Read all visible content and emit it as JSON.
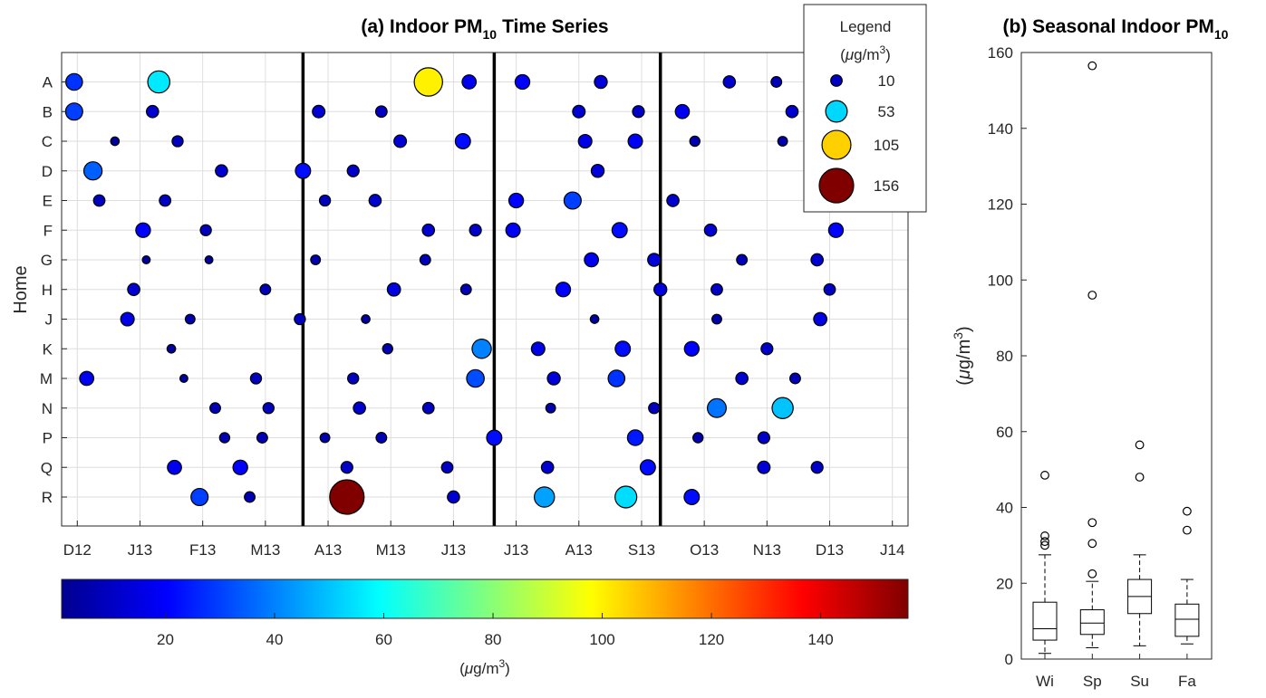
{
  "colors": {
    "bubble_stroke": "#000000",
    "grid": "#dedede",
    "colormap": [
      "#00008f",
      "#0000ff",
      "#00ffff",
      "#ffff00",
      "#ff0000",
      "#800000"
    ]
  },
  "chart_data": [
    {
      "type": "scatter",
      "title": "(a) Indoor PM",
      "title_sub": "10",
      "title_suffix": "Time Series",
      "ylabel": "Home",
      "xlabel": "",
      "grid": true,
      "x_ticks": [
        "D12",
        "J13",
        "F13",
        "M13",
        "A13",
        "M13",
        "J13",
        "J13",
        "A13",
        "S13",
        "O13",
        "N13",
        "D13",
        "J14"
      ],
      "homes": [
        "A",
        "B",
        "C",
        "D",
        "E",
        "F",
        "G",
        "H",
        "J",
        "K",
        "M",
        "N",
        "P",
        "Q",
        "R"
      ],
      "xlim": [
        -0.25,
        13.25
      ],
      "season_dividers": [
        3.6,
        6.65,
        9.3
      ],
      "color_range": [
        1,
        156
      ],
      "size_legend": {
        "title": "Legend",
        "unit_prefix": "(",
        "unit_mu": "μ",
        "unit_main": "g/m",
        "unit_sup": "3",
        "unit_suffix": ")",
        "values": [
          10,
          53,
          105,
          156
        ]
      },
      "points": [
        {
          "home": "A",
          "x": -0.05,
          "pm": 28
        },
        {
          "home": "A",
          "x": 1.3,
          "pm": 56
        },
        {
          "home": "A",
          "x": 5.6,
          "pm": 100
        },
        {
          "home": "A",
          "x": 6.25,
          "pm": 18
        },
        {
          "home": "A",
          "x": 7.1,
          "pm": 20
        },
        {
          "home": "A",
          "x": 8.35,
          "pm": 14
        },
        {
          "home": "A",
          "x": 10.4,
          "pm": 12
        },
        {
          "home": "A",
          "x": 11.15,
          "pm": 8
        },
        {
          "home": "B",
          "x": -0.05,
          "pm": 30
        },
        {
          "home": "B",
          "x": 1.2,
          "pm": 12
        },
        {
          "home": "B",
          "x": 3.85,
          "pm": 13
        },
        {
          "home": "B",
          "x": 4.85,
          "pm": 10
        },
        {
          "home": "B",
          "x": 8.0,
          "pm": 13
        },
        {
          "home": "B",
          "x": 8.95,
          "pm": 11
        },
        {
          "home": "B",
          "x": 9.65,
          "pm": 18
        },
        {
          "home": "B",
          "x": 11.4,
          "pm": 12
        },
        {
          "home": "C",
          "x": 0.6,
          "pm": 4
        },
        {
          "home": "C",
          "x": 1.6,
          "pm": 9
        },
        {
          "home": "C",
          "x": 5.15,
          "pm": 13
        },
        {
          "home": "C",
          "x": 6.15,
          "pm": 22
        },
        {
          "home": "C",
          "x": 8.1,
          "pm": 16
        },
        {
          "home": "C",
          "x": 8.9,
          "pm": 19
        },
        {
          "home": "C",
          "x": 9.85,
          "pm": 7
        },
        {
          "home": "C",
          "x": 11.25,
          "pm": 6
        },
        {
          "home": "D",
          "x": 0.25,
          "pm": 35
        },
        {
          "home": "D",
          "x": 2.3,
          "pm": 12
        },
        {
          "home": "D",
          "x": 3.6,
          "pm": 22
        },
        {
          "home": "D",
          "x": 4.4,
          "pm": 11
        },
        {
          "home": "D",
          "x": 8.3,
          "pm": 14
        },
        {
          "home": "E",
          "x": 0.35,
          "pm": 10
        },
        {
          "home": "E",
          "x": 1.4,
          "pm": 10
        },
        {
          "home": "E",
          "x": 3.95,
          "pm": 9
        },
        {
          "home": "E",
          "x": 4.75,
          "pm": 12
        },
        {
          "home": "E",
          "x": 7.0,
          "pm": 20
        },
        {
          "home": "E",
          "x": 7.9,
          "pm": 30
        },
        {
          "home": "E",
          "x": 9.5,
          "pm": 12
        },
        {
          "home": "F",
          "x": 1.05,
          "pm": 20
        },
        {
          "home": "F",
          "x": 2.05,
          "pm": 9
        },
        {
          "home": "F",
          "x": 5.6,
          "pm": 12
        },
        {
          "home": "F",
          "x": 6.35,
          "pm": 11
        },
        {
          "home": "F",
          "x": 6.95,
          "pm": 19
        },
        {
          "home": "F",
          "x": 8.65,
          "pm": 22
        },
        {
          "home": "F",
          "x": 10.1,
          "pm": 12
        },
        {
          "home": "F",
          "x": 12.1,
          "pm": 20
        },
        {
          "home": "G",
          "x": 1.1,
          "pm": 3
        },
        {
          "home": "G",
          "x": 2.1,
          "pm": 3
        },
        {
          "home": "G",
          "x": 3.8,
          "pm": 6
        },
        {
          "home": "G",
          "x": 5.55,
          "pm": 8
        },
        {
          "home": "G",
          "x": 8.2,
          "pm": 18
        },
        {
          "home": "G",
          "x": 9.2,
          "pm": 14
        },
        {
          "home": "G",
          "x": 10.6,
          "pm": 8
        },
        {
          "home": "G",
          "x": 11.8,
          "pm": 12
        },
        {
          "home": "H",
          "x": 0.9,
          "pm": 12
        },
        {
          "home": "H",
          "x": 3.0,
          "pm": 8
        },
        {
          "home": "H",
          "x": 5.05,
          "pm": 15
        },
        {
          "home": "H",
          "x": 6.2,
          "pm": 8
        },
        {
          "home": "H",
          "x": 7.75,
          "pm": 20
        },
        {
          "home": "H",
          "x": 9.3,
          "pm": 14
        },
        {
          "home": "H",
          "x": 10.2,
          "pm": 10
        },
        {
          "home": "H",
          "x": 12.0,
          "pm": 10
        },
        {
          "home": "J",
          "x": 0.8,
          "pm": 16
        },
        {
          "home": "J",
          "x": 1.8,
          "pm": 6
        },
        {
          "home": "J",
          "x": 3.55,
          "pm": 9
        },
        {
          "home": "J",
          "x": 4.6,
          "pm": 4
        },
        {
          "home": "J",
          "x": 8.25,
          "pm": 4
        },
        {
          "home": "J",
          "x": 10.2,
          "pm": 6
        },
        {
          "home": "J",
          "x": 11.85,
          "pm": 15
        },
        {
          "home": "K",
          "x": 1.5,
          "pm": 4
        },
        {
          "home": "K",
          "x": 4.95,
          "pm": 7
        },
        {
          "home": "K",
          "x": 6.45,
          "pm": 40
        },
        {
          "home": "K",
          "x": 7.35,
          "pm": 16
        },
        {
          "home": "K",
          "x": 8.7,
          "pm": 22
        },
        {
          "home": "K",
          "x": 9.8,
          "pm": 20
        },
        {
          "home": "K",
          "x": 11.0,
          "pm": 11
        },
        {
          "home": "M",
          "x": 0.15,
          "pm": 18
        },
        {
          "home": "M",
          "x": 1.7,
          "pm": 3
        },
        {
          "home": "M",
          "x": 2.85,
          "pm": 9
        },
        {
          "home": "M",
          "x": 4.4,
          "pm": 9
        },
        {
          "home": "M",
          "x": 6.35,
          "pm": 32
        },
        {
          "home": "M",
          "x": 7.6,
          "pm": 14
        },
        {
          "home": "M",
          "x": 8.6,
          "pm": 28
        },
        {
          "home": "M",
          "x": 10.6,
          "pm": 12
        },
        {
          "home": "M",
          "x": 11.45,
          "pm": 8
        },
        {
          "home": "N",
          "x": 2.2,
          "pm": 8
        },
        {
          "home": "N",
          "x": 3.05,
          "pm": 9
        },
        {
          "home": "N",
          "x": 4.5,
          "pm": 12
        },
        {
          "home": "N",
          "x": 5.6,
          "pm": 10
        },
        {
          "home": "N",
          "x": 7.55,
          "pm": 6
        },
        {
          "home": "N",
          "x": 9.2,
          "pm": 9
        },
        {
          "home": "N",
          "x": 10.2,
          "pm": 38
        },
        {
          "home": "N",
          "x": 11.25,
          "pm": 50
        },
        {
          "home": "P",
          "x": 2.35,
          "pm": 7
        },
        {
          "home": "P",
          "x": 2.95,
          "pm": 8
        },
        {
          "home": "P",
          "x": 3.95,
          "pm": 6
        },
        {
          "home": "P",
          "x": 4.85,
          "pm": 8
        },
        {
          "home": "P",
          "x": 6.65,
          "pm": 22
        },
        {
          "home": "P",
          "x": 8.9,
          "pm": 24
        },
        {
          "home": "P",
          "x": 9.9,
          "pm": 7
        },
        {
          "home": "P",
          "x": 10.95,
          "pm": 11
        },
        {
          "home": "Q",
          "x": 1.55,
          "pm": 18
        },
        {
          "home": "Q",
          "x": 2.6,
          "pm": 20
        },
        {
          "home": "Q",
          "x": 4.3,
          "pm": 11
        },
        {
          "home": "Q",
          "x": 5.9,
          "pm": 10
        },
        {
          "home": "Q",
          "x": 7.5,
          "pm": 12
        },
        {
          "home": "Q",
          "x": 9.1,
          "pm": 22
        },
        {
          "home": "Q",
          "x": 10.95,
          "pm": 13
        },
        {
          "home": "Q",
          "x": 11.8,
          "pm": 11
        },
        {
          "home": "R",
          "x": 1.95,
          "pm": 30
        },
        {
          "home": "R",
          "x": 2.75,
          "pm": 8
        },
        {
          "home": "R",
          "x": 4.3,
          "pm": 156
        },
        {
          "home": "R",
          "x": 6.0,
          "pm": 12
        },
        {
          "home": "R",
          "x": 7.45,
          "pm": 45
        },
        {
          "home": "R",
          "x": 8.75,
          "pm": 54
        },
        {
          "home": "R",
          "x": 9.8,
          "pm": 22
        }
      ]
    },
    {
      "type": "colorbar",
      "label_prefix": "(",
      "label_mu": "μ",
      "label_main": "g/m",
      "label_sup": "3",
      "label_suffix": ")",
      "range": [
        1,
        156
      ],
      "ticks": [
        20,
        40,
        60,
        80,
        100,
        120,
        140
      ]
    },
    {
      "type": "box",
      "title": "(b) Seasonal Indoor PM",
      "title_sub": "10",
      "ylabel_prefix": "(",
      "ylabel_mu": "μ",
      "ylabel_main": "g/m",
      "ylabel_sup": "3",
      "ylabel_suffix": ")",
      "ylim": [
        0,
        160
      ],
      "yticks": [
        0,
        20,
        40,
        60,
        80,
        100,
        120,
        140,
        160
      ],
      "categories": [
        "Wi",
        "Sp",
        "Su",
        "Fa"
      ],
      "boxes": [
        {
          "name": "Wi",
          "whisker_low": 1.5,
          "q1": 5,
          "median": 8,
          "q3": 15,
          "whisker_high": 27.5,
          "outliers": [
            48.5,
            32.5,
            31,
            30
          ]
        },
        {
          "name": "Sp",
          "whisker_low": 3,
          "q1": 6.5,
          "median": 9.5,
          "q3": 13,
          "whisker_high": 20.5,
          "outliers": [
            156.5,
            96,
            36,
            30.5,
            22.5
          ]
        },
        {
          "name": "Su",
          "whisker_low": 3.5,
          "q1": 12,
          "median": 16.5,
          "q3": 21,
          "whisker_high": 27.5,
          "outliers": [
            56.5,
            48
          ]
        },
        {
          "name": "Fa",
          "whisker_low": 4,
          "q1": 6,
          "median": 10.5,
          "q3": 14.5,
          "whisker_high": 21,
          "outliers": [
            39,
            34
          ]
        }
      ]
    }
  ]
}
